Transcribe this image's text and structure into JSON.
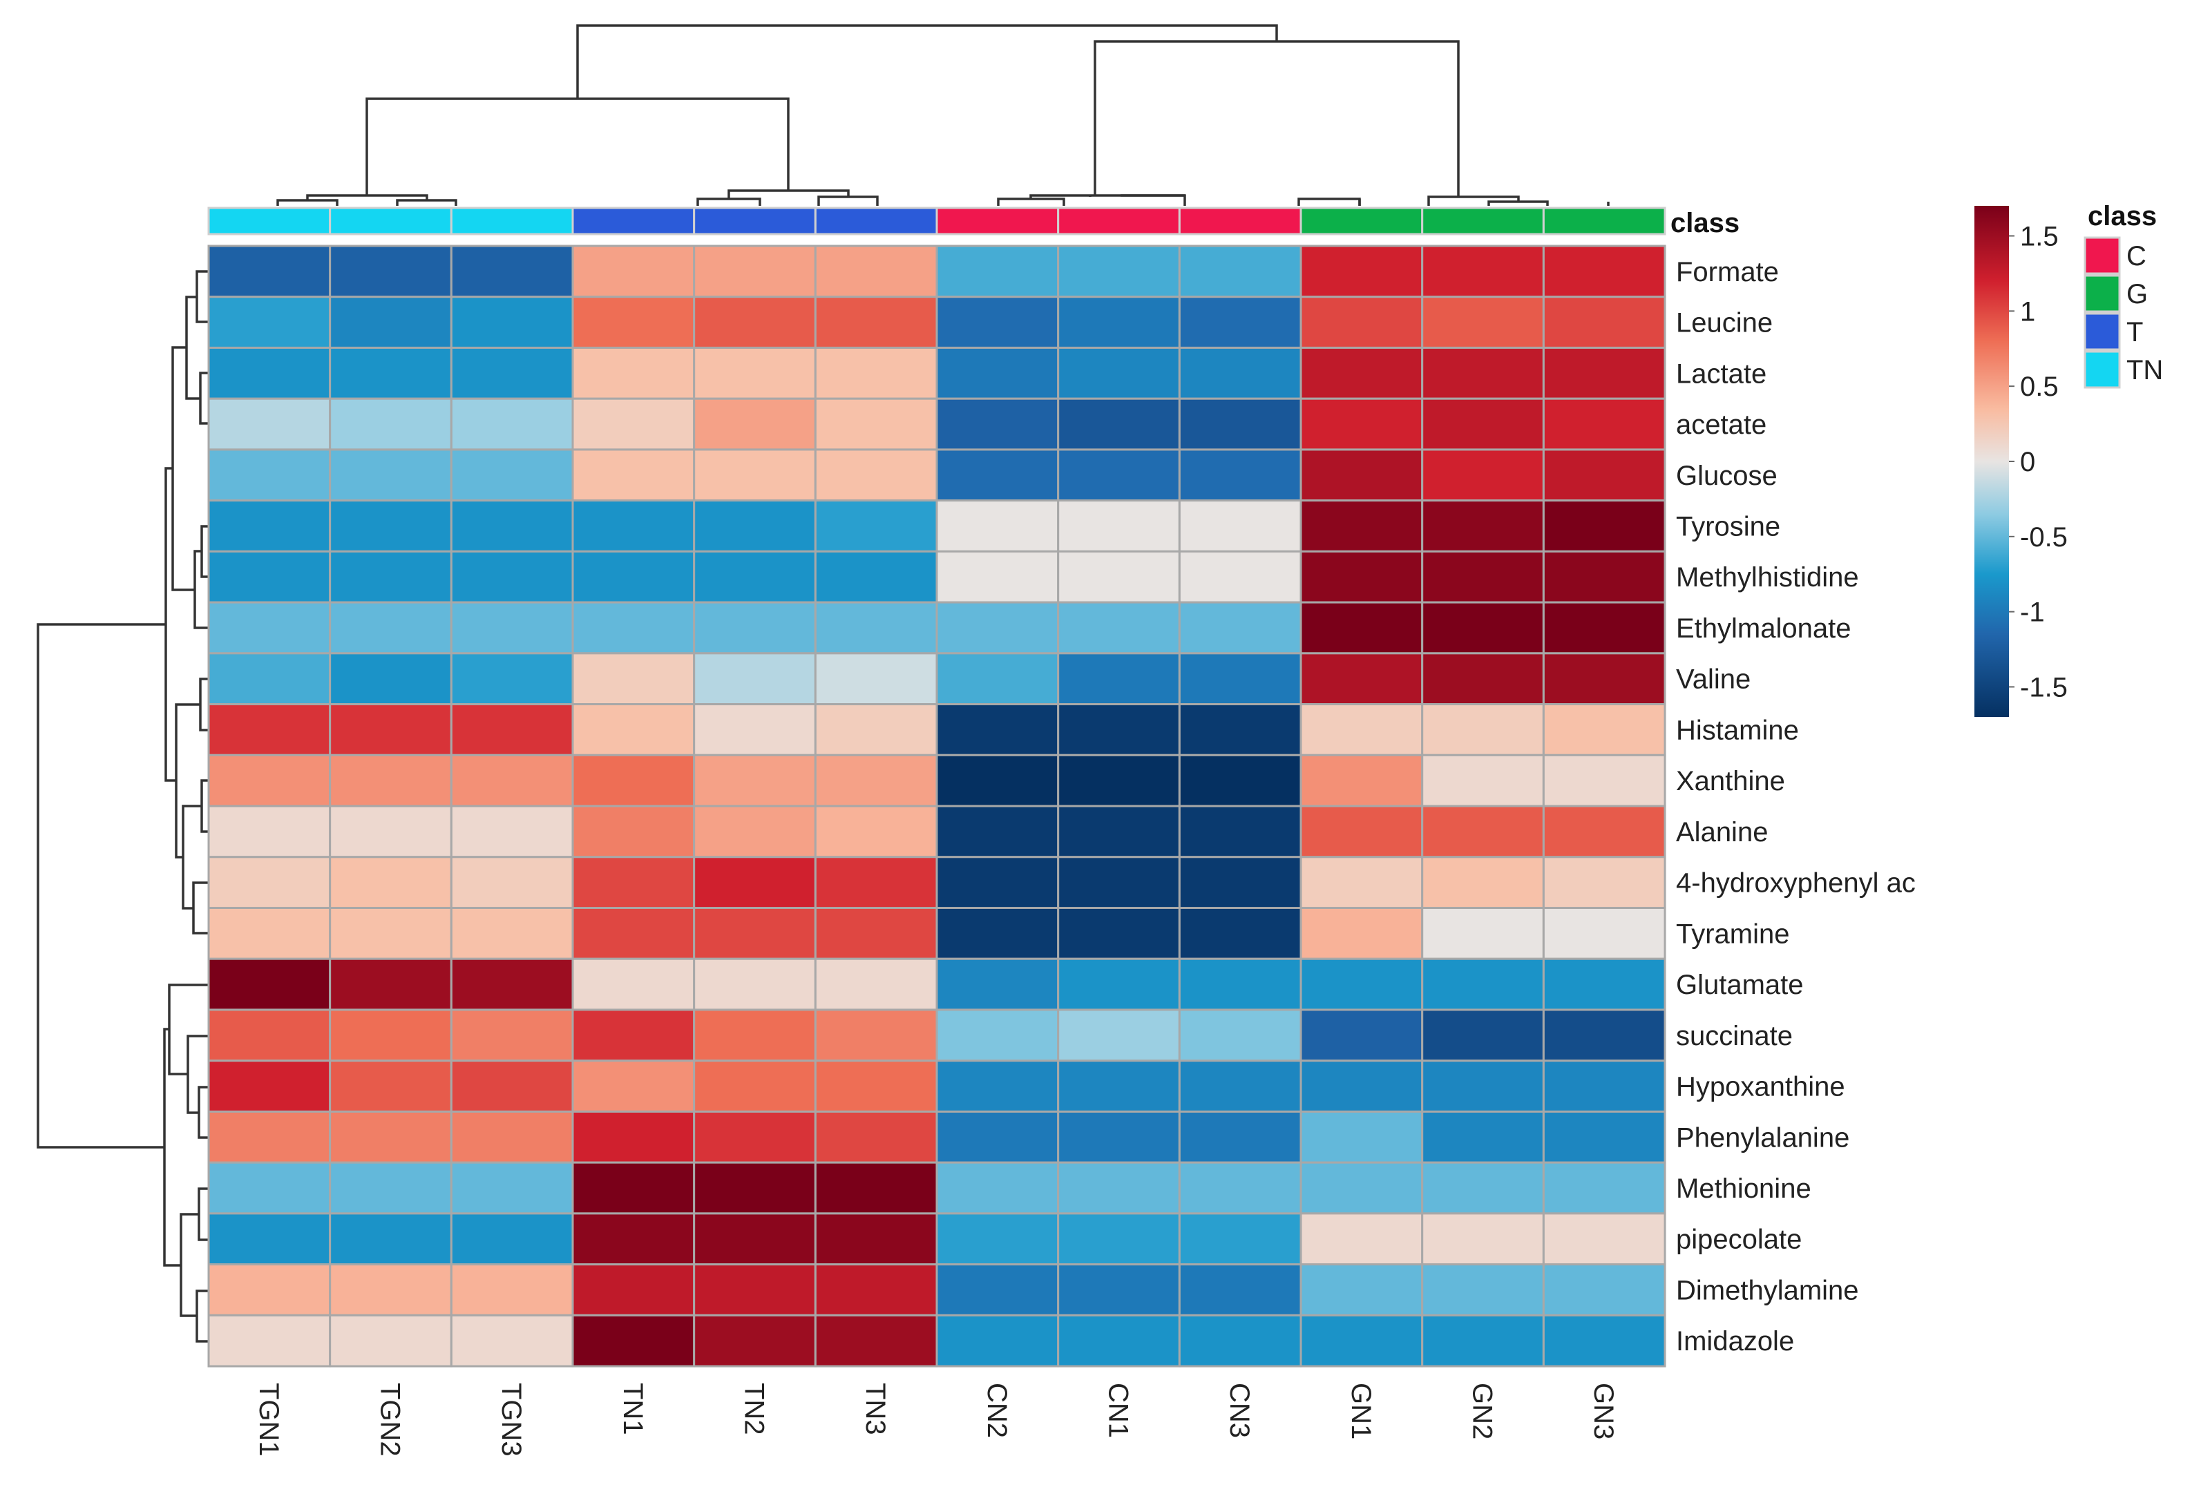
{
  "chart_data": {
    "type": "heatmap",
    "title": "",
    "columns": [
      "TGN1",
      "TGN2",
      "TGN3",
      "TN1",
      "TN2",
      "TN3",
      "CN2",
      "CN1",
      "CN3",
      "GN1",
      "GN2",
      "GN3"
    ],
    "column_class": [
      "TN",
      "TN",
      "TN",
      "T",
      "T",
      "T",
      "C",
      "C",
      "C",
      "G",
      "G",
      "G"
    ],
    "rows": [
      "Formate",
      "Leucine",
      "Lactate",
      "acetate",
      "Glucose",
      "Tyrosine",
      "Methylhistidine",
      "Ethylmalonate",
      "Valine",
      "Histamine",
      "Xanthine",
      "Alanine",
      "4-hydroxyphenyl ac",
      "Tyramine",
      "Glutamate",
      "succinate",
      "Hypoxanthine",
      "Phenylalanine",
      "Methionine",
      "pipecolate",
      "Dimethylamine",
      "Imidazole"
    ],
    "values": [
      [
        -1.2,
        -1.2,
        -1.2,
        0.5,
        0.5,
        0.5,
        -0.6,
        -0.6,
        -0.6,
        1.2,
        1.2,
        1.2
      ],
      [
        -0.7,
        -0.9,
        -0.8,
        0.8,
        0.9,
        0.9,
        -1.1,
        -1.0,
        -1.1,
        1.0,
        0.9,
        1.0
      ],
      [
        -0.8,
        -0.8,
        -0.8,
        0.3,
        0.3,
        0.3,
        -1.0,
        -0.9,
        -0.9,
        1.3,
        1.3,
        1.3
      ],
      [
        -0.2,
        -0.3,
        -0.3,
        0.2,
        0.5,
        0.3,
        -1.2,
        -1.3,
        -1.3,
        1.2,
        1.3,
        1.2
      ],
      [
        -0.5,
        -0.5,
        -0.5,
        0.3,
        0.3,
        0.3,
        -1.1,
        -1.1,
        -1.1,
        1.4,
        1.2,
        1.3
      ],
      [
        -0.8,
        -0.8,
        -0.8,
        -0.8,
        -0.8,
        -0.7,
        0.0,
        0.0,
        0.0,
        1.6,
        1.6,
        1.7
      ],
      [
        -0.8,
        -0.8,
        -0.8,
        -0.8,
        -0.8,
        -0.8,
        0.0,
        0.0,
        0.0,
        1.6,
        1.6,
        1.6
      ],
      [
        -0.5,
        -0.5,
        -0.5,
        -0.5,
        -0.5,
        -0.5,
        -0.5,
        -0.5,
        -0.5,
        1.7,
        1.7,
        1.7
      ],
      [
        -0.6,
        -0.8,
        -0.7,
        0.2,
        -0.2,
        -0.1,
        -0.6,
        -1.0,
        -1.0,
        1.4,
        1.5,
        1.5
      ],
      [
        1.1,
        1.1,
        1.1,
        0.3,
        0.1,
        0.2,
        -1.6,
        -1.6,
        -1.6,
        0.2,
        0.2,
        0.3
      ],
      [
        0.6,
        0.6,
        0.6,
        0.8,
        0.5,
        0.5,
        -1.7,
        -1.7,
        -1.7,
        0.6,
        0.1,
        0.1
      ],
      [
        0.1,
        0.1,
        0.1,
        0.7,
        0.5,
        0.4,
        -1.6,
        -1.6,
        -1.6,
        0.9,
        0.9,
        0.9
      ],
      [
        0.2,
        0.3,
        0.2,
        1.0,
        1.2,
        1.1,
        -1.6,
        -1.6,
        -1.6,
        0.2,
        0.3,
        0.2
      ],
      [
        0.3,
        0.3,
        0.3,
        1.0,
        1.0,
        1.0,
        -1.6,
        -1.6,
        -1.6,
        0.4,
        0.0,
        0.0
      ],
      [
        1.7,
        1.5,
        1.5,
        0.1,
        0.1,
        0.1,
        -0.9,
        -0.8,
        -0.8,
        -0.8,
        -0.8,
        -0.8
      ],
      [
        0.9,
        0.8,
        0.7,
        1.1,
        0.8,
        0.7,
        -0.4,
        -0.3,
        -0.4,
        -1.2,
        -1.4,
        -1.4
      ],
      [
        1.2,
        0.9,
        1.0,
        0.6,
        0.8,
        0.8,
        -0.9,
        -0.9,
        -0.9,
        -0.9,
        -0.9,
        -0.9
      ],
      [
        0.7,
        0.7,
        0.7,
        1.2,
        1.1,
        1.0,
        -1.0,
        -1.0,
        -1.0,
        -0.5,
        -0.9,
        -0.9
      ],
      [
        -0.5,
        -0.5,
        -0.5,
        1.7,
        1.7,
        1.8,
        -0.5,
        -0.5,
        -0.5,
        -0.5,
        -0.5,
        -0.5
      ],
      [
        -0.8,
        -0.8,
        -0.8,
        1.6,
        1.6,
        1.6,
        -0.7,
        -0.7,
        -0.7,
        0.1,
        0.1,
        0.1
      ],
      [
        0.4,
        0.4,
        0.4,
        1.3,
        1.3,
        1.3,
        -1.0,
        -1.0,
        -1.0,
        -0.5,
        -0.5,
        -0.5
      ],
      [
        0.1,
        0.1,
        0.1,
        1.7,
        1.5,
        1.5,
        -0.8,
        -0.8,
        -0.8,
        -0.8,
        -0.8,
        -0.8
      ]
    ],
    "color_scale": {
      "min": -1.7,
      "max": 1.7,
      "stops": [
        {
          "value": -1.7,
          "color": "#053061"
        },
        {
          "value": -1.15,
          "color": "#2166ac"
        },
        {
          "value": -0.75,
          "color": "#1a99cc"
        },
        {
          "value": -0.35,
          "color": "#8ecbe2"
        },
        {
          "value": 0.0,
          "color": "#e8e4e2"
        },
        {
          "value": 0.35,
          "color": "#f9bba0"
        },
        {
          "value": 0.8,
          "color": "#ee6e55"
        },
        {
          "value": 1.2,
          "color": "#d0202e"
        },
        {
          "value": 1.7,
          "color": "#7a0019"
        }
      ],
      "ticks": [
        {
          "value": 1.5,
          "label": "1.5"
        },
        {
          "value": 1.0,
          "label": "1"
        },
        {
          "value": 0.5,
          "label": "0.5"
        },
        {
          "value": 0.0,
          "label": "0"
        },
        {
          "value": -0.5,
          "label": "-0.5"
        },
        {
          "value": -1.0,
          "label": "-1"
        },
        {
          "value": -1.5,
          "label": "-1.5"
        }
      ]
    },
    "class_annotation": {
      "label": "class",
      "legend_title": "class",
      "classes": [
        {
          "name": "C",
          "color": "#f0174e"
        },
        {
          "name": "G",
          "color": "#0cb04a"
        },
        {
          "name": "T",
          "color": "#2b5bd9"
        },
        {
          "name": "TN",
          "color": "#14d6f2"
        }
      ]
    },
    "legend_position": "right"
  }
}
